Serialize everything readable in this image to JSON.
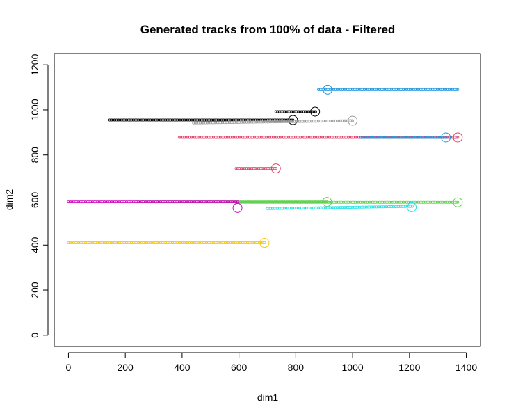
{
  "chart_data": {
    "type": "scatter",
    "title": "Generated tracks from 100% of data - Filtered",
    "xlabel": "dim1",
    "ylabel": "dim2",
    "xlim": [
      -50,
      1450
    ],
    "ylim": [
      -50,
      1250
    ],
    "xticks": [
      0,
      200,
      400,
      600,
      800,
      1000,
      1200,
      1400
    ],
    "yticks": [
      0,
      200,
      400,
      600,
      800,
      1000,
      1200
    ],
    "grid": false,
    "legend": "none",
    "series": [
      {
        "color": "#2196dc",
        "x_start": 880,
        "x_end": 1370,
        "y_start": 1090,
        "y_end": 1090,
        "end_x": 912,
        "end_y": 1090,
        "end_marker": true
      },
      {
        "color": "#000000",
        "x_start": 730,
        "x_end": 870,
        "y_start": 992,
        "y_end": 992,
        "end_x": 868,
        "end_y": 992,
        "end_marker": true
      },
      {
        "color": "#000000",
        "x_start": 145,
        "x_end": 790,
        "y_start": 955,
        "y_end": 955,
        "end_x": 790,
        "end_y": 955,
        "end_marker": true
      },
      {
        "color": "#9e9e9e",
        "x_start": 440,
        "x_end": 1000,
        "y_start": 942,
        "y_end": 952,
        "end_x": 1000,
        "end_y": 952,
        "end_marker": true
      },
      {
        "color": "#e0446c",
        "x_start": 390,
        "x_end": 1370,
        "y_start": 878,
        "y_end": 878,
        "end_x": 1370,
        "end_y": 878,
        "end_marker": true
      },
      {
        "color": "#2196dc",
        "x_start": 1030,
        "x_end": 1330,
        "y_start": 878,
        "y_end": 878,
        "end_x": 1328,
        "end_y": 878,
        "end_marker": true
      },
      {
        "color": "#e0446c",
        "x_start": 590,
        "x_end": 730,
        "y_start": 740,
        "y_end": 740,
        "end_x": 730,
        "end_y": 740,
        "end_marker": true
      },
      {
        "color": "#61d04f",
        "x_start": 240,
        "x_end": 910,
        "y_start": 592,
        "y_end": 592,
        "end_x": 910,
        "end_y": 592,
        "end_marker": true
      },
      {
        "color": "#61d04f",
        "x_start": 590,
        "x_end": 1370,
        "y_start": 590,
        "y_end": 590,
        "end_x": 1370,
        "end_y": 590,
        "end_marker": true
      },
      {
        "color": "#cd0bbc",
        "x_start": 0,
        "x_end": 595,
        "y_start": 592,
        "y_end": 592,
        "end_x": 595,
        "end_y": 565,
        "end_marker": true
      },
      {
        "color": "#28e2e5",
        "x_start": 700,
        "x_end": 1210,
        "y_start": 562,
        "y_end": 572,
        "end_x": 1208,
        "end_y": 568,
        "end_marker": true
      },
      {
        "color": "#f5c710",
        "x_start": 0,
        "x_end": 690,
        "y_start": 410,
        "y_end": 410,
        "end_x": 690,
        "end_y": 410,
        "end_marker": true
      }
    ]
  }
}
